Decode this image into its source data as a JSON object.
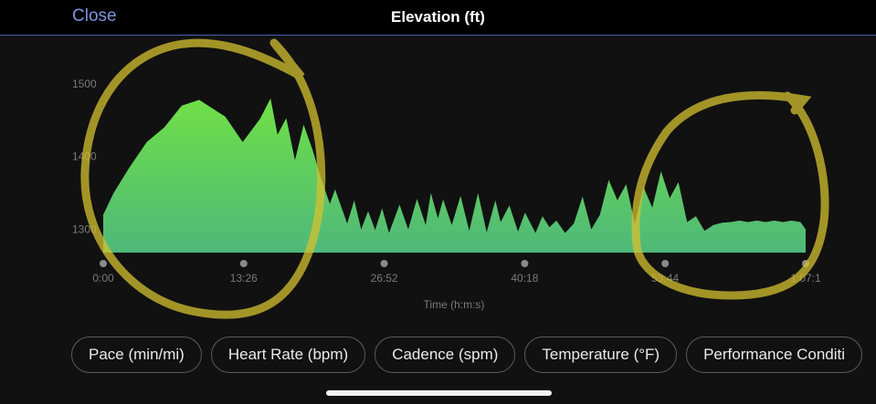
{
  "header": {
    "close_label": "Close",
    "title": "Elevation (ft)"
  },
  "chart_data": {
    "type": "area",
    "title": "",
    "xlabel": "Time (h:m:s)",
    "ylabel": "",
    "x_ticks": [
      "0:00",
      "13:26",
      "26:52",
      "40:18",
      "53:44",
      "1:07:1"
    ],
    "y_ticks": [
      1300,
      1400,
      1500
    ],
    "ylim": [
      1268,
      1500
    ],
    "x_range_seconds": [
      0,
      4030
    ],
    "series": [
      {
        "x": [
          0,
          60,
          150,
          250,
          350,
          450,
          550,
          700,
          800,
          900,
          960,
          1000,
          1050,
          1100,
          1150,
          1200,
          1250,
          1300,
          1330,
          1400,
          1440,
          1480,
          1520,
          1560,
          1600,
          1640,
          1700,
          1750,
          1800,
          1850,
          1880,
          1920,
          1950,
          2000,
          2050,
          2100,
          2150,
          2200,
          2250,
          2280,
          2330,
          2380,
          2420,
          2480,
          2520,
          2560,
          2600,
          2650,
          2700,
          2750,
          2800,
          2850,
          2900,
          2950,
          3000,
          3050,
          3100,
          3150,
          3200,
          3250,
          3300,
          3350,
          3400,
          3450,
          3500,
          3550,
          3600,
          3650,
          3700,
          3750,
          3800,
          3850,
          3900,
          3950,
          4000,
          4030
        ],
        "y": [
          1320,
          1350,
          1385,
          1420,
          1440,
          1470,
          1478,
          1455,
          1420,
          1452,
          1480,
          1430,
          1453,
          1395,
          1444,
          1410,
          1370,
          1335,
          1355,
          1308,
          1340,
          1300,
          1325,
          1299,
          1329,
          1295,
          1334,
          1300,
          1342,
          1306,
          1350,
          1315,
          1341,
          1306,
          1346,
          1298,
          1350,
          1296,
          1340,
          1310,
          1333,
          1297,
          1323,
          1295,
          1318,
          1303,
          1312,
          1295,
          1308,
          1345,
          1300,
          1320,
          1368,
          1340,
          1362,
          1308,
          1358,
          1330,
          1380,
          1343,
          1365,
          1310,
          1318,
          1298,
          1306,
          1309,
          1310,
          1312,
          1310,
          1312,
          1310,
          1312,
          1310,
          1312,
          1310,
          1300
        ],
        "color": "#5fd94c"
      }
    ],
    "grid": false,
    "legend": "none"
  },
  "metrics": [
    "Pace (min/mi)",
    "Heart Rate (bpm)",
    "Cadence (spm)",
    "Temperature (°F)",
    "Performance Conditi"
  ]
}
